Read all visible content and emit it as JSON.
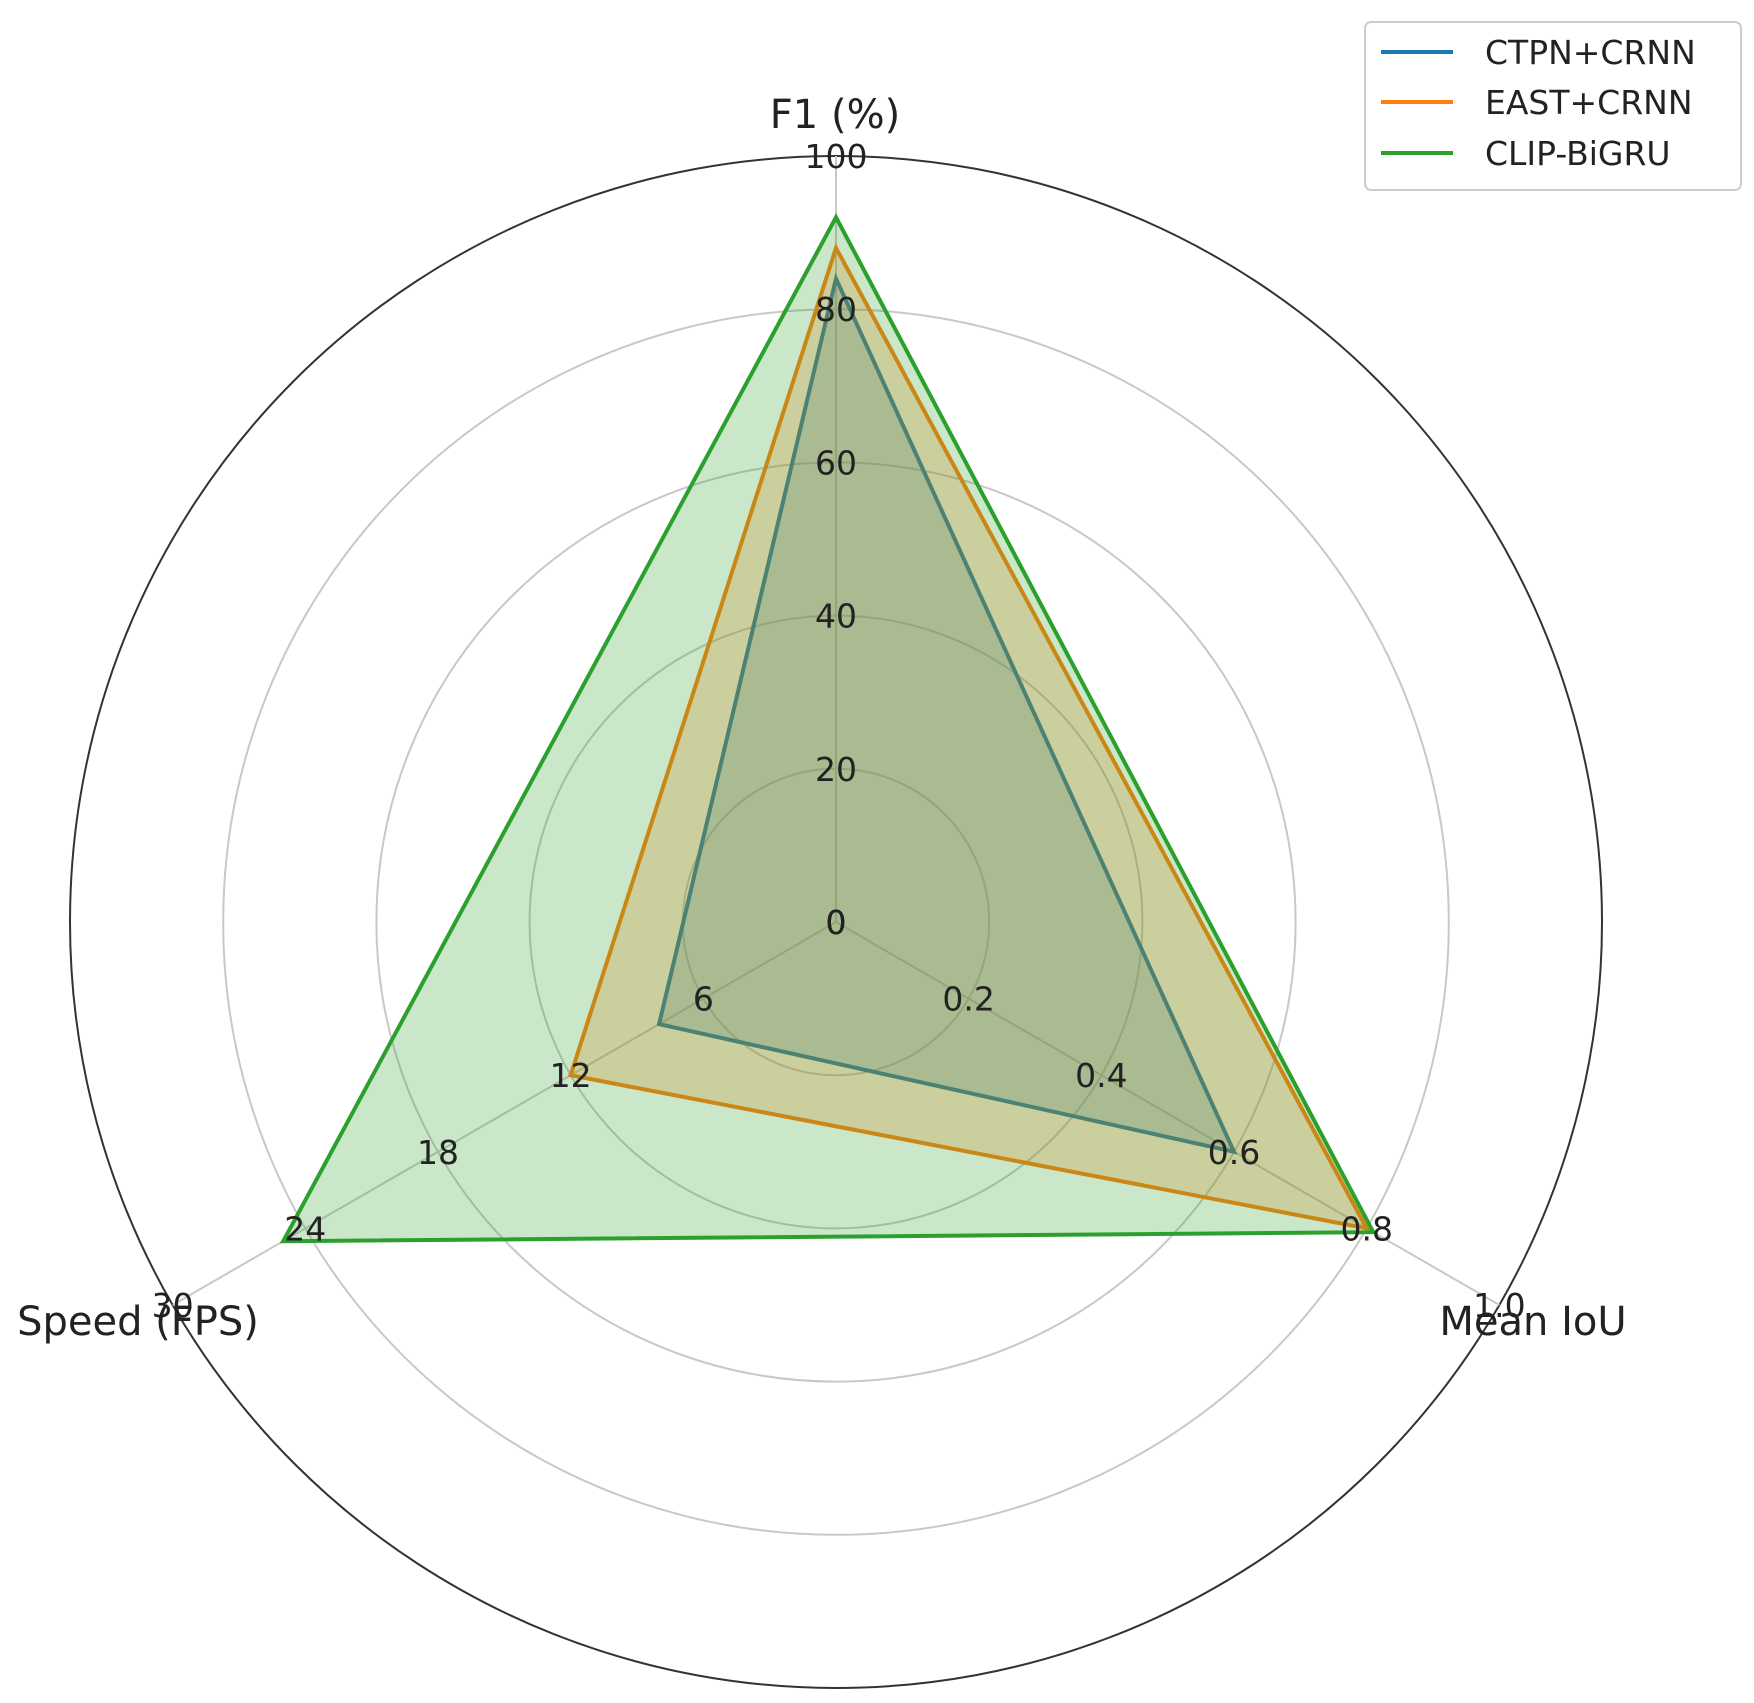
{
  "chart_data": {
    "type": "radar",
    "axes": [
      {
        "label": "F1 (%)",
        "max": 100,
        "ticks": [
          "0",
          "20",
          "40",
          "60",
          "80",
          "100"
        ]
      },
      {
        "label": "Mean IoU",
        "max": 1.0,
        "ticks": [
          "0",
          "0.2",
          "0.4",
          "0.6",
          "0.8",
          "1.0"
        ]
      },
      {
        "label": "Speed (FPS)",
        "max": 30,
        "ticks": [
          "0",
          "6",
          "12",
          "18",
          "24",
          "30"
        ]
      }
    ],
    "series": [
      {
        "name": "CTPN+CRNN",
        "color": "#1f77b4",
        "values": [
          84,
          0.6,
          8
        ]
      },
      {
        "name": "EAST+CRNN",
        "color": "#ff7f0e",
        "values": [
          88,
          0.8,
          12
        ]
      },
      {
        "name": "CLIP-BiGRU",
        "color": "#2ca02c",
        "values": [
          92,
          0.81,
          25
        ]
      }
    ],
    "grid": true,
    "legend_position": "top-right"
  }
}
